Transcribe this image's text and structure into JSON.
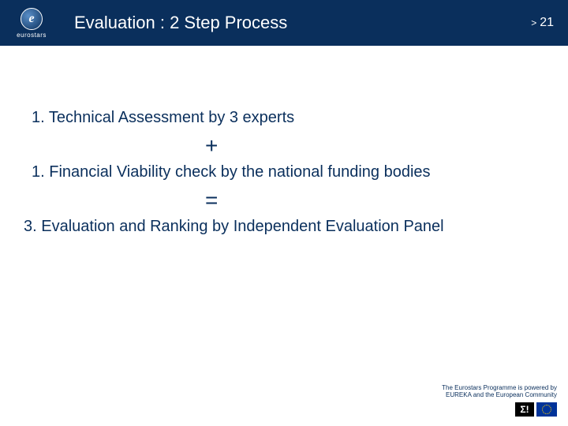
{
  "header": {
    "logo_letter": "e",
    "logo_label": "eurostars",
    "title": "Evaluation : 2 Step Process",
    "chevron": ">",
    "page_number": "21"
  },
  "content": {
    "step1": "1.  Technical Assessment by 3 experts",
    "plus": "+",
    "step2": "1.  Financial Viability check by the national funding bodies",
    "equals": "=",
    "step3": "3. Evaluation and Ranking by Independent Evaluation Panel"
  },
  "footer": {
    "line1": "The Eurostars Programme is powered by",
    "line2": "EUREKA and the European Community",
    "sigma": "Σ!"
  },
  "colors": {
    "header_bg": "#0a2f5c",
    "text": "#0a2f5c",
    "white": "#ffffff",
    "eu_blue": "#003399",
    "eu_gold": "#ffcc00"
  }
}
